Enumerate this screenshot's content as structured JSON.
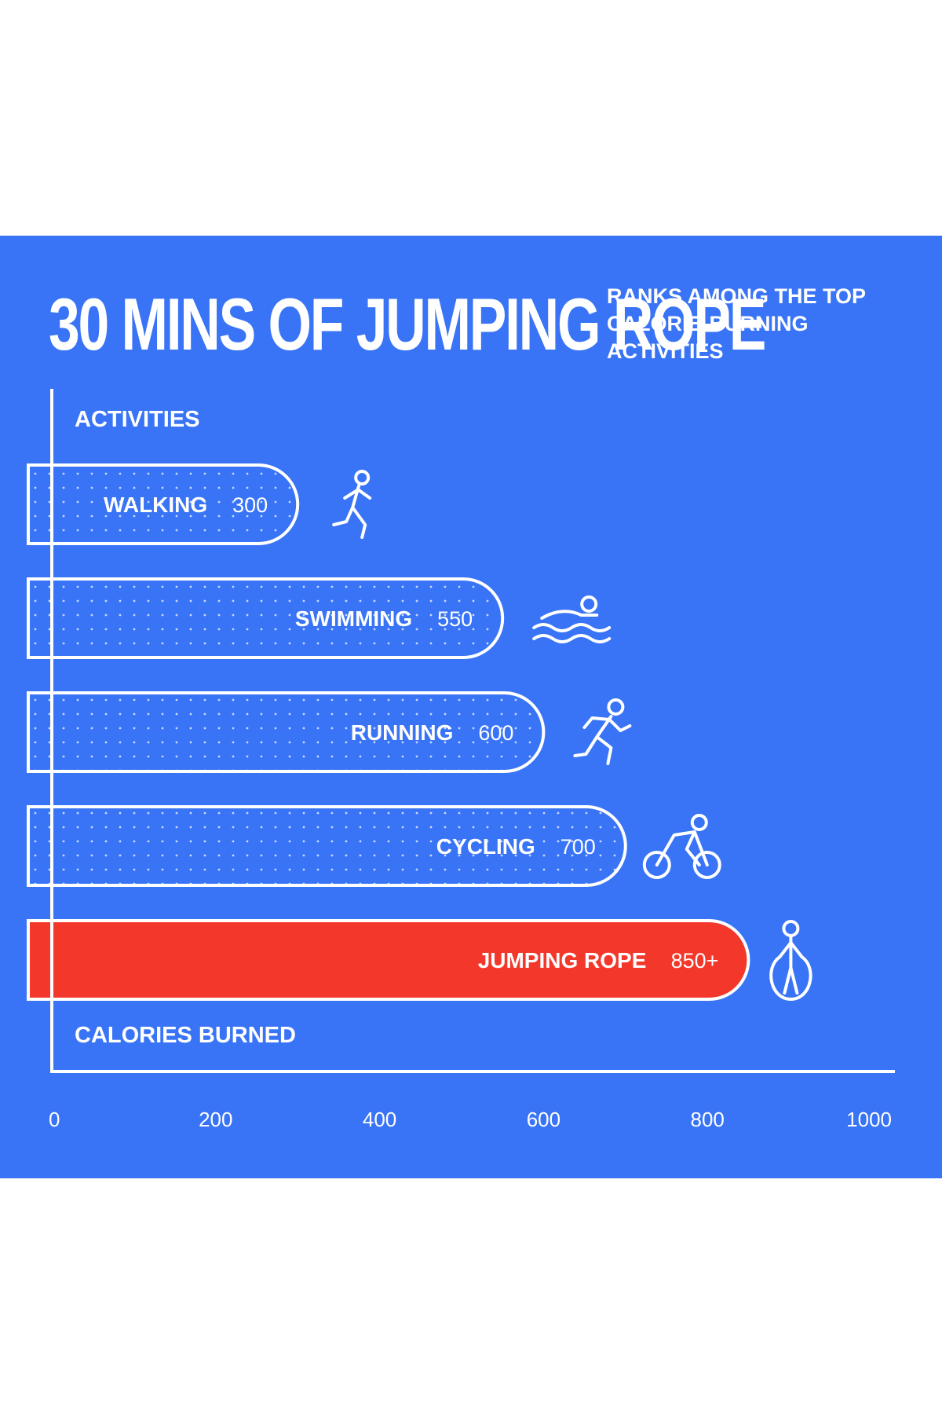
{
  "chart_data": {
    "type": "bar",
    "orientation": "horizontal",
    "title": "30 MINS OF JUMPING ROPE",
    "subtitle": "RANKS AMONG THE TOP CALORIE-BURNING ACTIVITIES",
    "ylabel": "ACTIVITIES",
    "xlabel": "CALORIES BURNED",
    "xlim": [
      0,
      1000
    ],
    "x_ticks": [
      "0",
      "200",
      "400",
      "600",
      "800",
      "1000"
    ],
    "grid": false,
    "categories": [
      "WALKING",
      "SWIMMING",
      "RUNNING",
      "CYCLING",
      "JUMPING ROPE"
    ],
    "values": [
      300,
      550,
      600,
      700,
      850
    ],
    "value_labels": [
      "300",
      "550",
      "600",
      "700",
      "850+"
    ],
    "icons": [
      "walking-person-icon",
      "swimmer-icon",
      "runner-icon",
      "cyclist-icon",
      "jump-rope-icon"
    ],
    "highlight": "JUMPING ROPE",
    "colors": {
      "background": "#3974f6",
      "highlight": "#f4372b",
      "bar": "#3974f6",
      "text": "#ffffff"
    }
  }
}
